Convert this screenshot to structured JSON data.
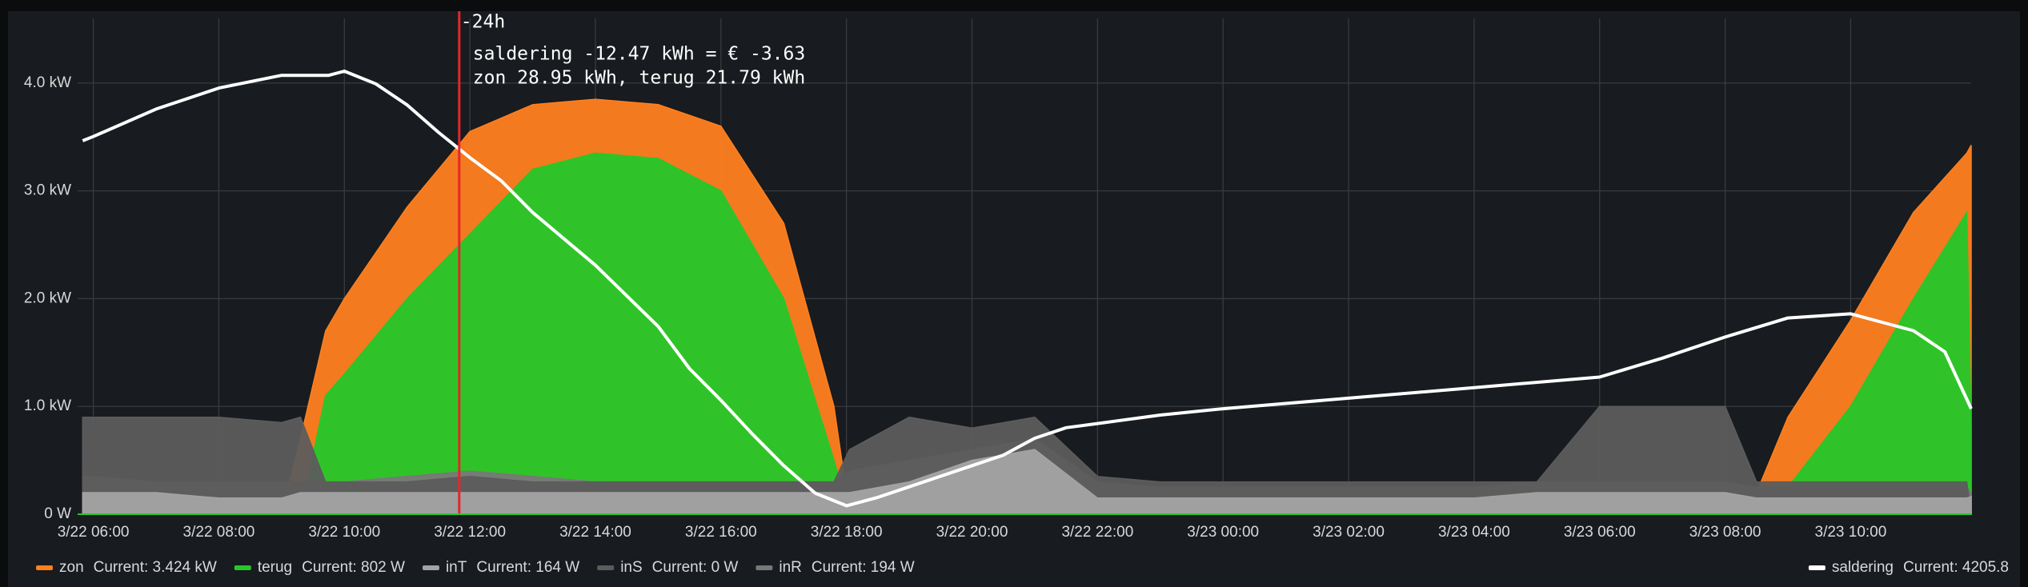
{
  "chart_data": {
    "type": "area",
    "xlim": [
      5.75,
      35.92
    ],
    "xticks": [
      {
        "value": 6,
        "label": "3/22 06:00"
      },
      {
        "value": 8,
        "label": "3/22 08:00"
      },
      {
        "value": 10,
        "label": "3/22 10:00"
      },
      {
        "value": 12,
        "label": "3/22 12:00"
      },
      {
        "value": 14,
        "label": "3/22 14:00"
      },
      {
        "value": 16,
        "label": "3/22 16:00"
      },
      {
        "value": 18,
        "label": "3/22 18:00"
      },
      {
        "value": 20,
        "label": "3/22 20:00"
      },
      {
        "value": 22,
        "label": "3/22 22:00"
      },
      {
        "value": 24,
        "label": "3/23 00:00"
      },
      {
        "value": 26,
        "label": "3/23 02:00"
      },
      {
        "value": 28,
        "label": "3/23 04:00"
      },
      {
        "value": 30,
        "label": "3/23 06:00"
      },
      {
        "value": 32,
        "label": "3/23 08:00"
      },
      {
        "value": 34,
        "label": "3/23 10:00"
      }
    ],
    "ylim": [
      0,
      4.6
    ],
    "yticks": [
      {
        "value": 0,
        "label": "0 W"
      },
      {
        "value": 1,
        "label": "1.0 kW"
      },
      {
        "value": 2,
        "label": "2.0 kW"
      },
      {
        "value": 3,
        "label": "3.0 kW"
      },
      {
        "value": 4,
        "label": "4.0 kW"
      }
    ],
    "y2lim": [
      4200.8,
      4224.3
    ],
    "grid": true,
    "x": [
      5.83,
      6,
      7,
      8,
      9,
      9.3,
      9.7,
      10,
      11,
      12,
      13,
      14,
      15,
      16,
      17,
      17.8,
      18.05,
      19,
      20,
      21,
      22,
      23,
      24,
      25,
      26,
      27,
      28,
      29,
      30,
      31,
      32,
      32.5,
      33,
      34,
      35,
      35.85,
      35.92
    ],
    "series": [
      {
        "name": "zon",
        "color": "#ff7f1f",
        "current": "Current: 3.424 kW",
        "values": [
          0,
          0,
          0,
          0,
          0,
          0.7,
          1.7,
          2.0,
          2.85,
          3.55,
          3.8,
          3.85,
          3.8,
          3.6,
          2.7,
          1.0,
          0,
          0,
          0,
          0,
          0,
          0,
          0,
          0,
          0,
          0,
          0,
          0,
          0,
          0,
          0,
          0.2,
          0.9,
          1.8,
          2.8,
          3.35,
          3.424
        ]
      },
      {
        "name": "terug",
        "color": "#25c72a",
        "current": "Current: 802 W",
        "values": [
          0,
          0,
          0,
          0,
          0,
          0,
          1.1,
          1.3,
          2.0,
          2.6,
          3.2,
          3.35,
          3.3,
          3.0,
          2.0,
          0.5,
          0,
          0,
          0,
          0,
          0,
          0,
          0,
          0,
          0,
          0,
          0,
          0,
          0,
          0,
          0,
          0,
          0.25,
          1.0,
          2.0,
          2.8,
          0.802
        ]
      },
      {
        "name": "inT",
        "color": "#a3a3a3",
        "current": "Current: 164 W",
        "values": [
          0.2,
          0.2,
          0.2,
          0.15,
          0.15,
          0.2,
          0.2,
          0.2,
          0.2,
          0.2,
          0.2,
          0.2,
          0.2,
          0.2,
          0.2,
          0.2,
          0.2,
          0.3,
          0.5,
          0.6,
          0.15,
          0.15,
          0.15,
          0.15,
          0.15,
          0.15,
          0.15,
          0.2,
          0.2,
          0.2,
          0.2,
          0.15,
          0.15,
          0.15,
          0.15,
          0.15,
          0.164
        ]
      },
      {
        "name": "inS",
        "color": "#5c5c5c",
        "current": "Current: 0 W",
        "values": [
          0.9,
          0.9,
          0.9,
          0.9,
          0.85,
          0.9,
          0.3,
          0.3,
          0.3,
          0.35,
          0.3,
          0.3,
          0.3,
          0.3,
          0.3,
          0.3,
          0.6,
          0.9,
          0.8,
          0.9,
          0.35,
          0.3,
          0.3,
          0.3,
          0.3,
          0.3,
          0.3,
          0.3,
          1.0,
          1.0,
          1.0,
          0.3,
          0.3,
          0.3,
          0.3,
          0.3,
          0
        ]
      },
      {
        "name": "inR",
        "color": "#787878",
        "current": "Current: 194 W",
        "values": [
          0.35,
          0.35,
          0.3,
          0.3,
          0.3,
          0.3,
          0.3,
          0.3,
          0.35,
          0.4,
          0.35,
          0.3,
          0.3,
          0.3,
          0.3,
          0.3,
          0.4,
          0.5,
          0.6,
          0.7,
          0.3,
          0.25,
          0.25,
          0.25,
          0.25,
          0.25,
          0.25,
          0.3,
          0.3,
          0.3,
          0.3,
          0.25,
          0.25,
          0.25,
          0.25,
          0.25,
          0.194
        ]
      },
      {
        "name": "saldering",
        "color": "#ffffff",
        "current": "Current: 4205.8",
        "axis": "y2",
        "type": "line",
        "x": [
          5.83,
          6,
          7,
          8,
          9,
          9.75,
          10,
          10.5,
          11,
          11.5,
          12,
          12.5,
          13,
          14,
          15,
          15.5,
          16,
          16.5,
          17,
          17.5,
          18,
          18.5,
          19,
          19.5,
          20,
          20.5,
          21,
          21.5,
          22,
          23,
          24,
          26,
          28,
          30,
          31,
          32,
          33,
          34,
          35,
          35.5,
          35.92
        ],
        "values": [
          4218.5,
          4218.7,
          4220.0,
          4221.0,
          4221.6,
          4221.6,
          4221.8,
          4221.2,
          4220.2,
          4218.9,
          4217.7,
          4216.6,
          4215.1,
          4212.6,
          4209.7,
          4207.7,
          4206.2,
          4204.6,
          4203.1,
          4201.8,
          4201.2,
          4201.6,
          4202.1,
          4202.6,
          4203.1,
          4203.6,
          4204.4,
          4204.9,
          4205.1,
          4205.5,
          4205.8,
          4206.3,
          4206.8,
          4207.3,
          4208.2,
          4209.2,
          4210.1,
          4210.3,
          4209.5,
          4208.5,
          4205.8
        ]
      }
    ],
    "annotations": [
      {
        "x": 11.83,
        "color": "#e5262b",
        "label": "-24h",
        "text": [
          "saldering -12.47 kWh = € -3.63",
          "zon 28.95 kWh, terug 21.79 kWh"
        ]
      }
    ]
  }
}
